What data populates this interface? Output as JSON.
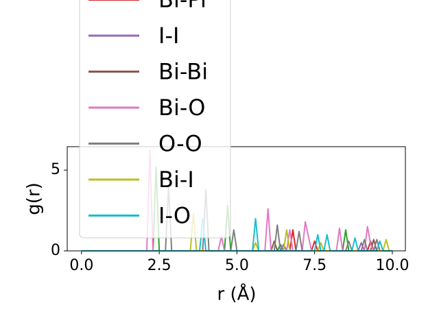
{
  "chart_data": {
    "type": "line",
    "xlabel": "r (Å)",
    "ylabel": "g(r)",
    "x": [
      0,
      0.1,
      0.2,
      0.3,
      0.4,
      0.5,
      0.6,
      0.7,
      0.8,
      0.9,
      1,
      1.1,
      1.2,
      1.3,
      1.4,
      1.5,
      1.6,
      1.7,
      1.8,
      1.9,
      2,
      2.1,
      2.2,
      2.3,
      2.4,
      2.5,
      2.6,
      2.7,
      2.8,
      2.9,
      3,
      3.1,
      3.2,
      3.3,
      3.4,
      3.5,
      3.6,
      3.7,
      3.8,
      3.9,
      4,
      4.1,
      4.2,
      4.3,
      4.4,
      4.5,
      4.6,
      4.7,
      4.8,
      4.9,
      5,
      5.1,
      5.2,
      5.3,
      5.4,
      5.5,
      5.6,
      5.7,
      5.8,
      5.9,
      6,
      6.1,
      6.2,
      6.3,
      6.4,
      6.5,
      6.6,
      6.7,
      6.8,
      6.9,
      7,
      7.1,
      7.2,
      7.3,
      7.4,
      7.5,
      7.6,
      7.7,
      7.8,
      7.9,
      8,
      8.1,
      8.2,
      8.3,
      8.4,
      8.5,
      8.6,
      8.7,
      8.8,
      8.9,
      9,
      9.1,
      9.2,
      9.3,
      9.4,
      9.5,
      9.6,
      9.7,
      9.8,
      9.9,
      10
    ],
    "series": [
      {
        "name": null,
        "color": "#2ca02c",
        "values": [
          0,
          0,
          0,
          0,
          0,
          0,
          0,
          0,
          0,
          0,
          0,
          0,
          0,
          0,
          0,
          0,
          0,
          0,
          0,
          0,
          0,
          0,
          0,
          0,
          5.2,
          0,
          0,
          0,
          0,
          0,
          0,
          0,
          0,
          0,
          0,
          0,
          0,
          0,
          0,
          0,
          0,
          0,
          0,
          0,
          0,
          0,
          0,
          2.8,
          0,
          0,
          0,
          0,
          0,
          0,
          0,
          0,
          0,
          0,
          0,
          0,
          0,
          0,
          0,
          0,
          0.4,
          0,
          0,
          0,
          0,
          0,
          0,
          0,
          0,
          0,
          0,
          0,
          0,
          0,
          0,
          0,
          0,
          0,
          0,
          0,
          0,
          1.3,
          0,
          0,
          0,
          0,
          0,
          0,
          0,
          0,
          0,
          0,
          0,
          0,
          0,
          0,
          0
        ]
      },
      {
        "name": "Bi-Pr",
        "color": "#d62728",
        "values": [
          0,
          0,
          0,
          0,
          0,
          0,
          0,
          0,
          0,
          0,
          0,
          0,
          0,
          0,
          0,
          0,
          0,
          0,
          0,
          0,
          0,
          0,
          0,
          0,
          0,
          0,
          0,
          0,
          0,
          0,
          0,
          0,
          0,
          0,
          0,
          0,
          0,
          0,
          0,
          0,
          0,
          0,
          0,
          0,
          0,
          0,
          0,
          0,
          0,
          0,
          0,
          0,
          0,
          0,
          0,
          0,
          0,
          0,
          0,
          0,
          0,
          0,
          0,
          0,
          0,
          0,
          0,
          0,
          1.3,
          0,
          0,
          0,
          0,
          0,
          0,
          0.6,
          0,
          0,
          0,
          0,
          0,
          0,
          0,
          0,
          0,
          0,
          0,
          0,
          0,
          0,
          0,
          0,
          0,
          0.6,
          0,
          0,
          0,
          0,
          0,
          0,
          0
        ]
      },
      {
        "name": "I-I",
        "color": "#9467bd",
        "values": [
          0,
          0,
          0,
          0,
          0,
          0,
          0,
          0,
          0,
          0,
          0,
          0,
          0,
          0,
          0,
          0,
          0,
          0,
          0,
          0,
          0,
          0,
          0,
          0,
          0,
          0,
          0,
          0,
          0,
          0,
          0,
          0,
          0,
          0,
          0,
          0,
          0,
          0,
          0,
          0,
          0,
          0,
          0,
          0,
          0,
          0,
          0,
          0,
          0,
          0,
          0,
          0,
          0,
          0,
          0,
          0,
          0,
          0,
          0,
          0,
          0,
          0,
          0,
          0,
          0,
          0.4,
          0,
          0,
          0,
          0,
          0,
          0,
          0,
          0,
          0,
          0,
          0,
          0,
          0,
          0,
          0,
          0,
          0,
          0,
          0,
          0,
          0,
          0,
          0,
          0,
          0.5,
          0,
          0,
          0,
          0,
          0,
          0,
          0,
          0,
          0,
          0
        ]
      },
      {
        "name": "Bi-Bi",
        "color": "#8c564b",
        "values": [
          0,
          0,
          0,
          0,
          0,
          0,
          0,
          0,
          0,
          0,
          0,
          0,
          0,
          0,
          0,
          0,
          0,
          0,
          0,
          0,
          0,
          0,
          0,
          0,
          0,
          0,
          0,
          0,
          0,
          0,
          0,
          0,
          0,
          0,
          0,
          0,
          0,
          0,
          0,
          0,
          0,
          0,
          0,
          0,
          0,
          0,
          0,
          0,
          0,
          0,
          0,
          0,
          0,
          0,
          0,
          0,
          0,
          0,
          0,
          0,
          0,
          0,
          0.6,
          0,
          0,
          0,
          0,
          0,
          0,
          0,
          0,
          0,
          0,
          0,
          0,
          0,
          0,
          0,
          0,
          0,
          0,
          0,
          0,
          0,
          0,
          0,
          0,
          0,
          0,
          0,
          0,
          0,
          0,
          0,
          0.7,
          0,
          0,
          0,
          0,
          0,
          0
        ]
      },
      {
        "name": "Bi-O",
        "color": "#e377c2",
        "values": [
          0,
          0,
          0,
          0,
          0,
          0,
          0,
          0,
          0,
          0,
          0,
          0,
          0,
          0,
          0,
          0,
          0,
          0,
          0,
          0,
          0,
          0,
          6.2,
          0,
          0,
          0,
          0,
          0,
          0,
          0,
          0,
          0,
          0,
          0,
          0,
          0,
          0,
          0,
          0,
          0,
          0,
          0,
          0,
          0,
          0,
          0.9,
          0,
          0,
          0,
          0,
          0,
          0,
          0,
          0,
          0,
          0,
          0,
          0,
          0,
          0,
          2.6,
          0,
          0,
          0,
          0,
          0,
          0,
          1.3,
          0,
          0,
          0,
          0,
          1.8,
          0.9,
          0,
          0,
          0,
          0,
          0,
          0,
          0,
          0,
          0,
          1.4,
          0,
          0,
          0,
          0,
          0,
          0,
          0,
          0,
          1.5,
          0.4,
          0,
          0,
          0,
          0,
          0,
          0,
          0
        ]
      },
      {
        "name": "O-O",
        "color": "#7f7f7f",
        "values": [
          0,
          0,
          0,
          0,
          0,
          0,
          0,
          0,
          0,
          0,
          0,
          0,
          0,
          0,
          0,
          0,
          0,
          0,
          0,
          0,
          0,
          0,
          0,
          0,
          0,
          0,
          0,
          0,
          4.0,
          0,
          0,
          0,
          0,
          0,
          0,
          0,
          0,
          0,
          0,
          0,
          3.8,
          0,
          0,
          0,
          0,
          0,
          0,
          0,
          0,
          1.3,
          0,
          0,
          0,
          0,
          0,
          0,
          0,
          0,
          0,
          0,
          0,
          0,
          0,
          1.6,
          0,
          0,
          0,
          0,
          0,
          0,
          1.2,
          0,
          0,
          0,
          0,
          0,
          0,
          0,
          0,
          0,
          0,
          0,
          0,
          0,
          0,
          0,
          0.6,
          0,
          0,
          0,
          0,
          0.7,
          0,
          0,
          0,
          0.7,
          0,
          0,
          0,
          0,
          0
        ]
      },
      {
        "name": "Bi-I",
        "color": "#bcbd22",
        "values": [
          0,
          0,
          0,
          0,
          0,
          0,
          0,
          0,
          0,
          0,
          0,
          0,
          0,
          0,
          0,
          0,
          0,
          0,
          0,
          0,
          0,
          0,
          0,
          0,
          0,
          0,
          0,
          0,
          0,
          0,
          0,
          0,
          0,
          0,
          0,
          0,
          2.3,
          0,
          0,
          0,
          0,
          0,
          0,
          0,
          0,
          0,
          0,
          0,
          0,
          0,
          0,
          0,
          0,
          0,
          0,
          0,
          0.5,
          0,
          0,
          0,
          0,
          0,
          0,
          0,
          0,
          0,
          1.3,
          0,
          0,
          0,
          0,
          0,
          0,
          0,
          0,
          0,
          0,
          0.5,
          0,
          0,
          0,
          0,
          0,
          0,
          0,
          0,
          0,
          0,
          0,
          0,
          0,
          0,
          0,
          0,
          0,
          0,
          0,
          0,
          0.7,
          0,
          0
        ]
      },
      {
        "name": "I-O",
        "color": "#17becf",
        "values": [
          0,
          0,
          0,
          0,
          0,
          0,
          0,
          0,
          0,
          0,
          0,
          0,
          0,
          0,
          0,
          0,
          0,
          0,
          0,
          0,
          0,
          0,
          0,
          0,
          0,
          0,
          0,
          0,
          0,
          0,
          0,
          0,
          0,
          0,
          0,
          0,
          0,
          0,
          0,
          2.0,
          0,
          0,
          0,
          0,
          0,
          0,
          0,
          0,
          0,
          0,
          0,
          0,
          0,
          0,
          0,
          0,
          2.0,
          0,
          0,
          0,
          0,
          0,
          0,
          0,
          0,
          0,
          0,
          0,
          0,
          0,
          0,
          0,
          0,
          0,
          0,
          0,
          1.0,
          0,
          0,
          1.0,
          0,
          0,
          0,
          0,
          0,
          0,
          0,
          0,
          0.8,
          0,
          0,
          0,
          0,
          0,
          0,
          0,
          0.6,
          0,
          0,
          0,
          0
        ]
      }
    ],
    "xlim": [
      -0.46,
      10.42
    ],
    "ylim": [
      0,
      6.45
    ],
    "xticks": [
      {
        "value": 0,
        "label": "0.0"
      },
      2.5,
      {
        "value": 5,
        "label": "5.0"
      },
      7.5,
      {
        "value": 10,
        "label": "10.0"
      }
    ],
    "yticks": [
      0,
      5
    ],
    "legend": "upper left"
  }
}
